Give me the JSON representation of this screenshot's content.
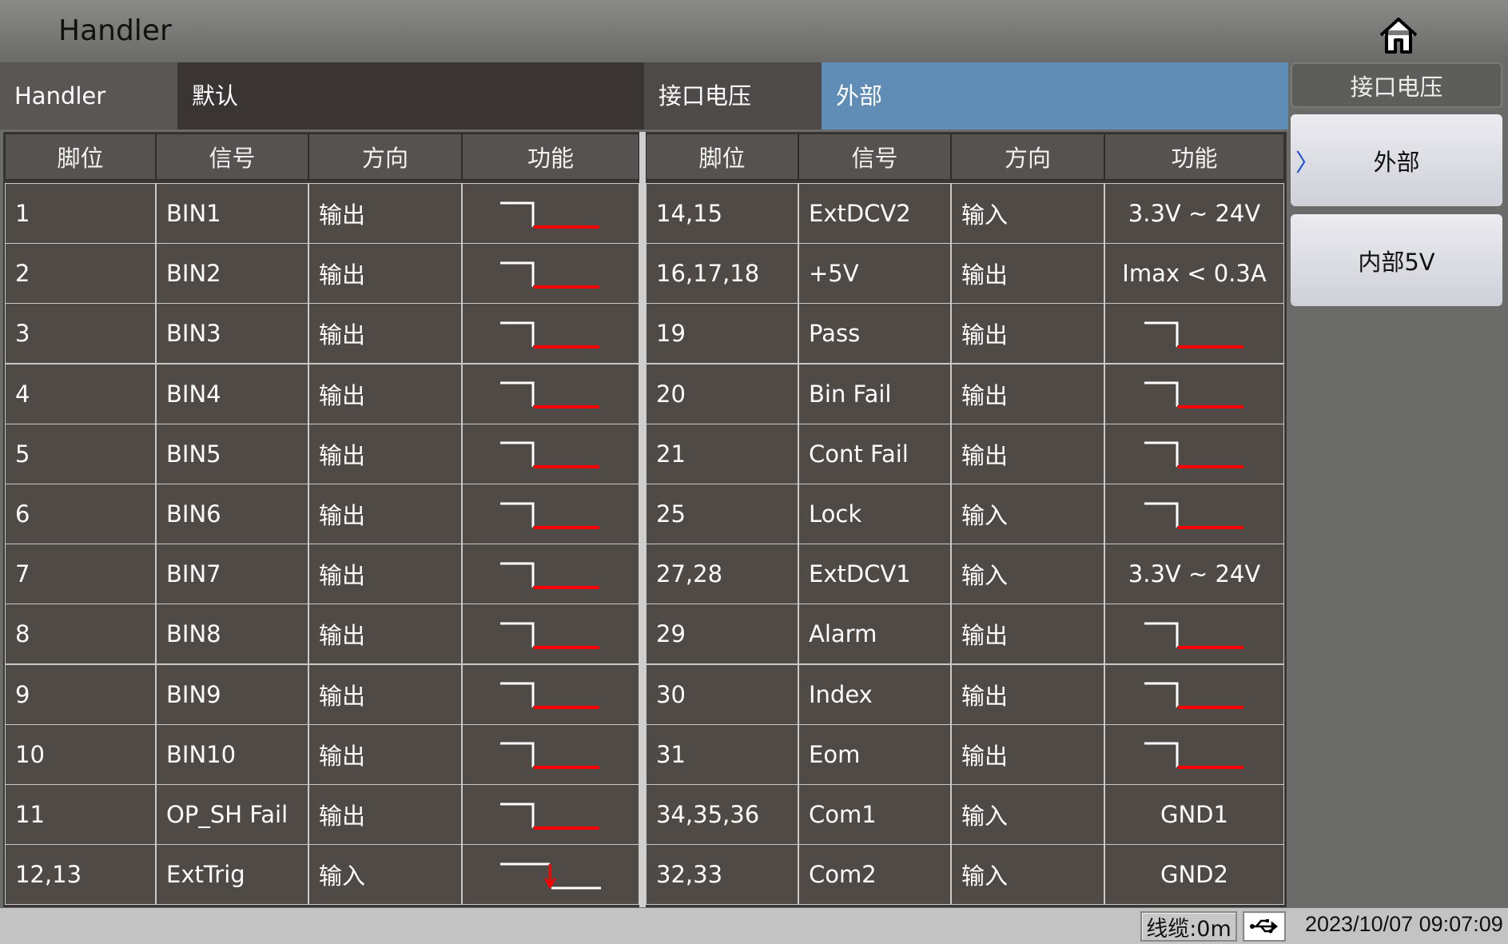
{
  "title": "Handler",
  "info_bar": {
    "label": "Handler",
    "profile": "默认",
    "voltage_label": "接口电压",
    "voltage_value": "外部"
  },
  "colors": {
    "selected_bg": "#5f8db5",
    "wave_high": "#ffffff",
    "wave_active": "#ff0000",
    "cell_bg": "#504a47"
  },
  "table": {
    "headers": [
      "脚位",
      "信号",
      "方向",
      "功能",
      "脚位",
      "信号",
      "方向",
      "功能"
    ],
    "left_rows": [
      {
        "pin": "1",
        "signal": "BIN1",
        "dir": "输出",
        "wave": "falling-edge"
      },
      {
        "pin": "2",
        "signal": "BIN2",
        "dir": "输出",
        "wave": "falling-edge"
      },
      {
        "pin": "3",
        "signal": "BIN3",
        "dir": "输出",
        "wave": "falling-edge"
      },
      {
        "pin": "4",
        "signal": "BIN4",
        "dir": "输出",
        "wave": "falling-edge"
      },
      {
        "pin": "5",
        "signal": "BIN5",
        "dir": "输出",
        "wave": "falling-edge"
      },
      {
        "pin": "6",
        "signal": "BIN6",
        "dir": "输出",
        "wave": "falling-edge"
      },
      {
        "pin": "7",
        "signal": "BIN7",
        "dir": "输出",
        "wave": "falling-edge"
      },
      {
        "pin": "8",
        "signal": "BIN8",
        "dir": "输出",
        "wave": "falling-edge"
      },
      {
        "pin": "9",
        "signal": "BIN9",
        "dir": "输出",
        "wave": "falling-edge"
      },
      {
        "pin": "10",
        "signal": "BIN10",
        "dir": "输出",
        "wave": "falling-edge"
      },
      {
        "pin": "11",
        "signal": "OP_SH Fail",
        "dir": "输出",
        "wave": "falling-edge"
      },
      {
        "pin": "12,13",
        "signal": "ExtTrig",
        "dir": "输入",
        "wave": "falling-trigger"
      }
    ],
    "right_rows": [
      {
        "pin": "14,15",
        "signal": "ExtDCV2",
        "dir": "输入",
        "func": "3.3V ~ 24V"
      },
      {
        "pin": "16,17,18",
        "signal": "+5V",
        "dir": "输出",
        "func": "Imax < 0.3A"
      },
      {
        "pin": "19",
        "signal": "Pass",
        "dir": "输出",
        "wave": "falling-edge"
      },
      {
        "pin": "20",
        "signal": "Bin Fail",
        "dir": "输出",
        "wave": "falling-edge"
      },
      {
        "pin": "21",
        "signal": "Cont Fail",
        "dir": "输出",
        "wave": "falling-edge"
      },
      {
        "pin": "25",
        "signal": "Lock",
        "dir": "输入",
        "wave": "falling-edge"
      },
      {
        "pin": "27,28",
        "signal": "ExtDCV1",
        "dir": "输入",
        "func": "3.3V ~ 24V"
      },
      {
        "pin": "29",
        "signal": "Alarm",
        "dir": "输出",
        "wave": "falling-edge"
      },
      {
        "pin": "30",
        "signal": "Index",
        "dir": "输出",
        "wave": "falling-edge"
      },
      {
        "pin": "31",
        "signal": "Eom",
        "dir": "输出",
        "wave": "falling-edge"
      },
      {
        "pin": "34,35,36",
        "signal": "Com1",
        "dir": "输入",
        "func": "GND1"
      },
      {
        "pin": "32,33",
        "signal": "Com2",
        "dir": "输入",
        "func": "GND2"
      }
    ]
  },
  "side_panel": {
    "header": "接口电压",
    "options": [
      {
        "label": "外部",
        "selected": true
      },
      {
        "label": "内部5V",
        "selected": false
      }
    ],
    "selected_marker": "〉"
  },
  "status": {
    "cable": "线缆:0m",
    "usb_icon": "usb-icon",
    "datetime": "2023/10/07 09:07:09"
  }
}
